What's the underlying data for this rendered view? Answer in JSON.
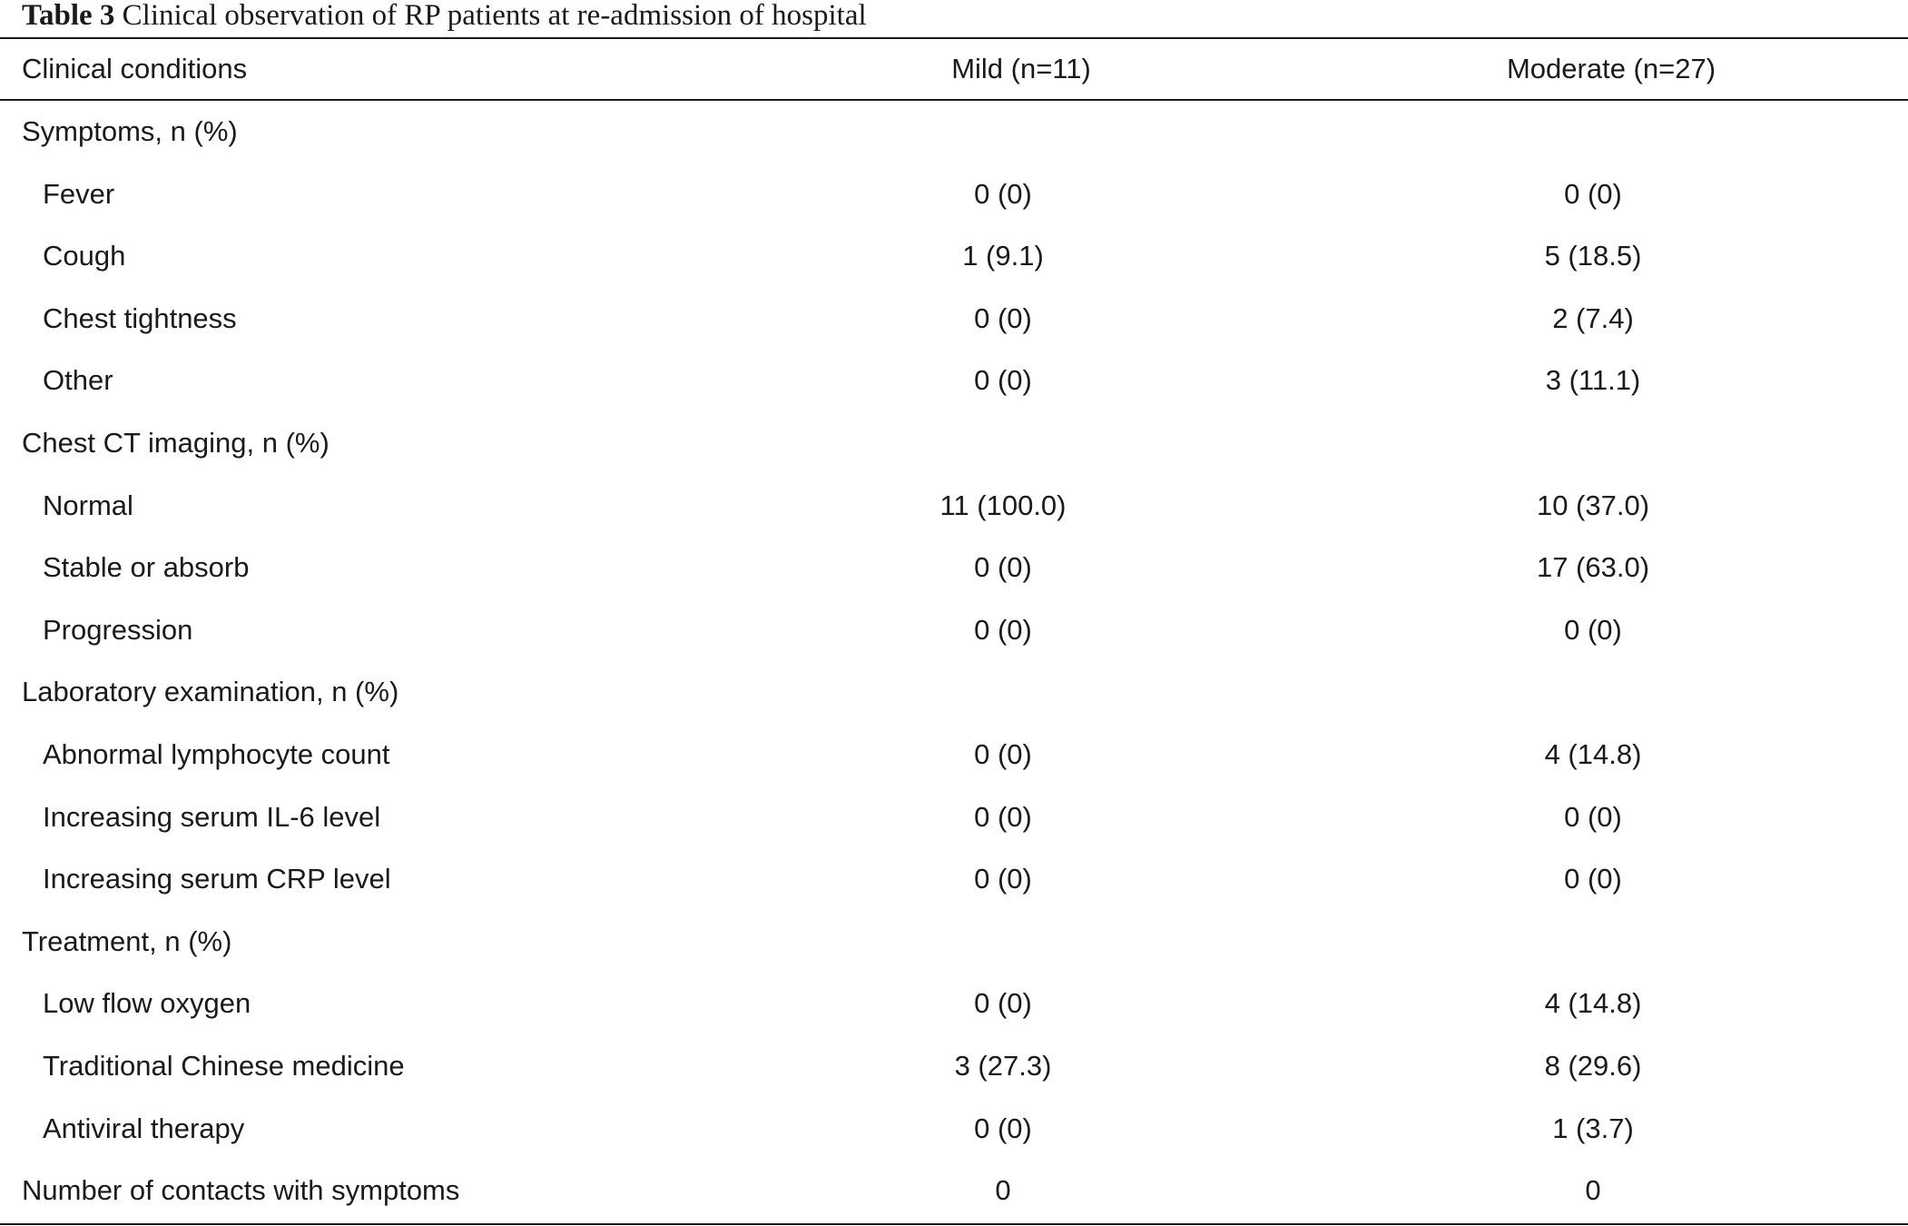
{
  "caption": {
    "label": "Table 3",
    "text": " Clinical observation of RP patients at re-admission of hospital"
  },
  "header": {
    "col0": "Clinical conditions",
    "col1": "Mild (n=11)",
    "col2": "Moderate (n=27)"
  },
  "rows": [
    {
      "label": "Symptoms, n (%)",
      "mild": "",
      "moderate": "",
      "section": true
    },
    {
      "label": "Fever",
      "mild": "0 (0)",
      "moderate": "0 (0)"
    },
    {
      "label": "Cough",
      "mild": "1 (9.1)",
      "moderate": "5 (18.5)"
    },
    {
      "label": "Chest tightness",
      "mild": "0 (0)",
      "moderate": "2 (7.4)"
    },
    {
      "label": "Other",
      "mild": "0 (0)",
      "moderate": "3 (11.1)"
    },
    {
      "label": "Chest CT imaging, n (%)",
      "mild": "",
      "moderate": "",
      "section": true
    },
    {
      "label": "Normal",
      "mild": "11 (100.0)",
      "moderate": "10 (37.0)"
    },
    {
      "label": "Stable or absorb",
      "mild": "0 (0)",
      "moderate": "17 (63.0)"
    },
    {
      "label": "Progression",
      "mild": "0 (0)",
      "moderate": "0 (0)"
    },
    {
      "label": "Laboratory examination, n (%)",
      "mild": "",
      "moderate": "",
      "section": true
    },
    {
      "label": "Abnormal lymphocyte count",
      "mild": "0 (0)",
      "moderate": "4 (14.8)"
    },
    {
      "label": "Increasing serum IL-6 level",
      "mild": "0 (0)",
      "moderate": "0 (0)"
    },
    {
      "label": "Increasing serum CRP level",
      "mild": "0 (0)",
      "moderate": "0 (0)"
    },
    {
      "label": "Treatment, n (%)",
      "mild": "",
      "moderate": "",
      "section": true
    },
    {
      "label": "Low flow oxygen",
      "mild": "0 (0)",
      "moderate": "4 (14.8)"
    },
    {
      "label": "Traditional Chinese medicine",
      "mild": "3 (27.3)",
      "moderate": "8 (29.6)"
    },
    {
      "label": "Antiviral therapy",
      "mild": "0 (0)",
      "moderate": "1 (3.7)"
    },
    {
      "label": "Number of contacts with symptoms",
      "mild": "0",
      "moderate": "0",
      "section": true
    }
  ]
}
